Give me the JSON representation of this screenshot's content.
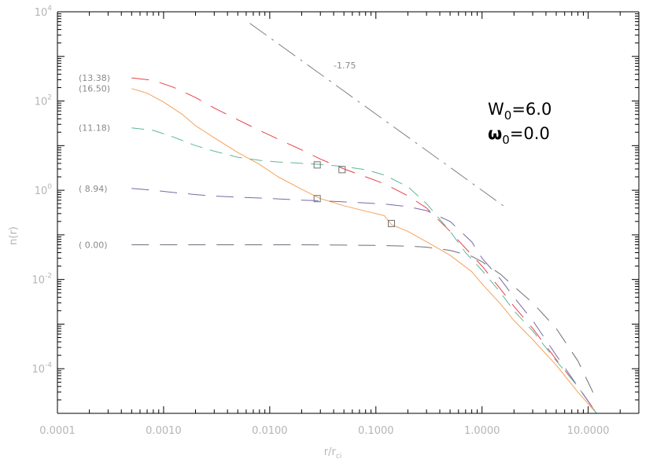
{
  "chart_data": {
    "type": "line",
    "xlabel": "r/r",
    "xlabel_sub": "ci",
    "ylabel": "n(r)",
    "x_scale": "log",
    "y_scale": "log",
    "xlim": [
      0.0001,
      30.0
    ],
    "ylim": [
      1e-05,
      10000
    ],
    "grid": false,
    "x_ticks": [
      {
        "value": 0.0001,
        "label": "0.0001"
      },
      {
        "value": 0.001,
        "label": "0.0010"
      },
      {
        "value": 0.01,
        "label": "0.0100"
      },
      {
        "value": 0.1,
        "label": "0.1000"
      },
      {
        "value": 1.0,
        "label": "1.0000"
      },
      {
        "value": 10.0,
        "label": "10.0000"
      }
    ],
    "y_ticks": [
      {
        "value": 0.0001,
        "base": "10",
        "exp": "-4"
      },
      {
        "value": 0.01,
        "base": "10",
        "exp": "-2"
      },
      {
        "value": 1,
        "base": "10",
        "exp": "0"
      },
      {
        "value": 100,
        "base": "10",
        "exp": "2"
      },
      {
        "value": 10000,
        "base": "10",
        "exp": "4"
      }
    ],
    "annotations": {
      "w0_base": "W",
      "w0_sub": "0",
      "w0_value": "=6.0",
      "omega_base": "ω",
      "omega_sub": "0",
      "omega_value": "=0.0",
      "slope_label": "-1.75"
    },
    "series": [
      {
        "label": "(13.38)",
        "color": "#e8404a",
        "dash": "long",
        "x": [
          0.0005,
          0.0008,
          0.0012,
          0.002,
          0.003,
          0.005,
          0.008,
          0.012,
          0.02,
          0.03,
          0.05,
          0.08,
          0.12,
          0.2,
          0.3,
          0.5,
          0.7,
          1.0,
          1.5,
          2.0,
          3.0,
          5.0,
          8.0,
          12.0
        ],
        "y": [
          330,
          290,
          210,
          120,
          70,
          38,
          22,
          14,
          8,
          5,
          3,
          2,
          1.4,
          0.75,
          0.4,
          0.12,
          0.05,
          0.02,
          0.006,
          0.0025,
          0.0008,
          0.00016,
          4e-05,
          1e-05
        ]
      },
      {
        "label": "(16.50)",
        "color": "#f5a25a",
        "dash": "solid",
        "x": [
          0.0005,
          0.0007,
          0.001,
          0.0015,
          0.002,
          0.003,
          0.005,
          0.008,
          0.012,
          0.02,
          0.03,
          0.05,
          0.08,
          0.12,
          0.14,
          0.2,
          0.3,
          0.5,
          0.8,
          1.0,
          1.5,
          2.0,
          3.0,
          5.0,
          8.0,
          12.0
        ],
        "y": [
          190,
          150,
          95,
          50,
          28,
          15,
          7,
          3.8,
          2,
          1.05,
          0.65,
          0.45,
          0.34,
          0.27,
          0.17,
          0.12,
          0.07,
          0.035,
          0.015,
          0.008,
          0.0028,
          0.0012,
          0.00045,
          0.00012,
          3e-05,
          1e-05
        ]
      },
      {
        "label": "(11.18)",
        "color": "#5db89a",
        "dash": "medium",
        "x": [
          0.0005,
          0.0008,
          0.0012,
          0.002,
          0.003,
          0.005,
          0.008,
          0.012,
          0.02,
          0.03,
          0.05,
          0.08,
          0.12,
          0.2,
          0.3,
          0.5,
          0.7,
          1.0,
          1.5,
          2.0,
          3.0,
          5.0,
          8.0,
          12.0
        ],
        "y": [
          25,
          22,
          16,
          10,
          7.5,
          5.5,
          4.7,
          4.3,
          4.0,
          3.8,
          3.4,
          2.9,
          2.2,
          1.2,
          0.5,
          0.12,
          0.04,
          0.016,
          0.005,
          0.002,
          0.0007,
          0.00015,
          4e-05,
          1e-05
        ]
      },
      {
        "label": "( 8.94)",
        "color": "#7868a8",
        "dash": "long",
        "x": [
          0.0005,
          0.0008,
          0.0012,
          0.002,
          0.003,
          0.005,
          0.008,
          0.012,
          0.02,
          0.03,
          0.05,
          0.08,
          0.12,
          0.2,
          0.3,
          0.5,
          0.8,
          1.0,
          1.5,
          2.0,
          3.0,
          5.0,
          8.0,
          12.0
        ],
        "y": [
          1.1,
          1.0,
          0.9,
          0.8,
          0.74,
          0.7,
          0.67,
          0.64,
          0.6,
          0.58,
          0.55,
          0.52,
          0.49,
          0.43,
          0.35,
          0.2,
          0.07,
          0.03,
          0.01,
          0.004,
          0.0012,
          0.0002,
          4e-05,
          1e-05
        ]
      },
      {
        "label": "( 0.00)",
        "color": "#6e6e7a",
        "dash": "long",
        "x": [
          0.0005,
          0.001,
          0.002,
          0.005,
          0.01,
          0.02,
          0.05,
          0.1,
          0.2,
          0.3,
          0.5,
          0.8,
          1.0,
          1.5,
          2.0,
          3.0,
          5.0,
          8.0,
          12.0
        ],
        "y": [
          0.06,
          0.06,
          0.06,
          0.06,
          0.06,
          0.06,
          0.059,
          0.058,
          0.056,
          0.053,
          0.045,
          0.033,
          0.025,
          0.013,
          0.007,
          0.003,
          0.0008,
          0.00015,
          2e-05
        ]
      },
      {
        "label": "",
        "color": "#808080",
        "dash": "dashdot",
        "x": [
          0.0065,
          1.7
        ],
        "y": [
          5500,
          0.4
        ]
      }
    ],
    "markers": [
      {
        "x": 0.028,
        "y": 3.7
      },
      {
        "x": 0.048,
        "y": 2.9
      },
      {
        "x": 0.028,
        "y": 0.65
      },
      {
        "x": 0.14,
        "y": 0.18
      }
    ]
  }
}
